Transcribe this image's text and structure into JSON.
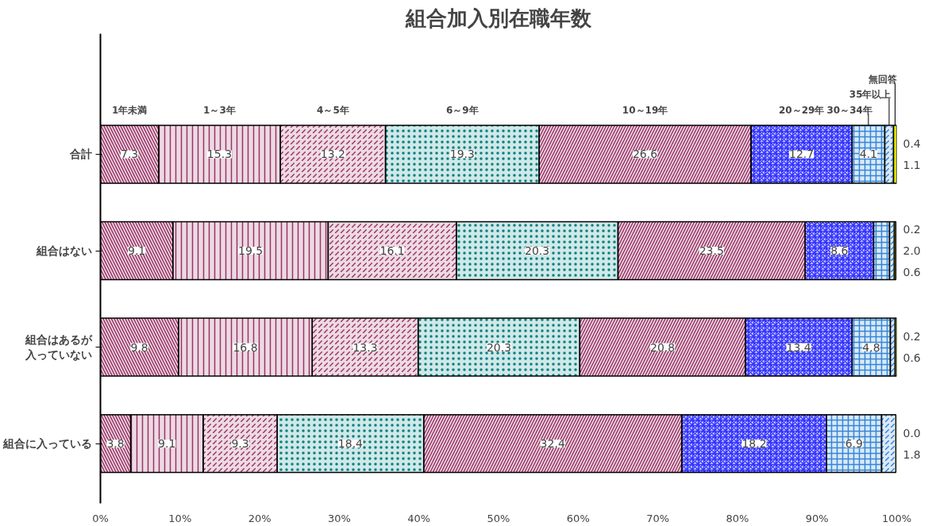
{
  "chart_data": {
    "type": "bar",
    "orientation": "horizontal",
    "stacked": true,
    "title": "組合加入別在職年数",
    "categories": [
      "合計",
      "組合はない",
      "組合はあるが入っていない",
      "組合に入っている"
    ],
    "series": [
      {
        "name": "1年未満",
        "color": "#993366",
        "values": [
          7.3,
          9.1,
          9.8,
          3.8
        ],
        "value_labels": [
          "7.3",
          "9.1",
          "9.8",
          "3.8"
        ]
      },
      {
        "name": "1～3年",
        "color": "#993366",
        "values": [
          15.3,
          19.5,
          16.8,
          9.1
        ],
        "value_labels": [
          "15.3",
          "19.5",
          "16.8",
          "9.1"
        ]
      },
      {
        "name": "4～5年",
        "color": "#993366",
        "values": [
          13.2,
          16.1,
          13.3,
          9.3
        ],
        "value_labels": [
          "13.2",
          "16.1",
          "13.3",
          "9.3"
        ]
      },
      {
        "name": "6～9年",
        "color": "#008080",
        "values": [
          19.3,
          20.3,
          20.3,
          18.4
        ],
        "value_labels": [
          "19.3",
          "20.3",
          "20.3",
          "18.4"
        ]
      },
      {
        "name": "10～19年",
        "color": "#993366",
        "values": [
          26.6,
          23.5,
          20.8,
          32.4
        ],
        "value_labels": [
          "26.6",
          "23.5",
          "20.8",
          "32.4"
        ]
      },
      {
        "name": "20～29年",
        "color": "#3333ff",
        "values": [
          12.7,
          8.6,
          13.4,
          18.2
        ],
        "value_labels": [
          "12.7",
          "8.6",
          "13.4",
          "18.2"
        ]
      },
      {
        "name": "30～34年",
        "color": "#3385d6",
        "values": [
          4.1,
          2.0,
          4.8,
          6.9
        ],
        "value_labels": [
          "4.1",
          "2.0",
          "4.8",
          "6.9"
        ]
      },
      {
        "name": "35年以上",
        "color": "#3385d6",
        "values": [
          1.1,
          0.6,
          0.6,
          1.8
        ],
        "value_labels": [
          "1.1",
          "0.6",
          "0.6",
          "1.8"
        ]
      },
      {
        "name": "無回答",
        "color": "#ffff00",
        "values": [
          0.4,
          0.2,
          0.2,
          0.0
        ],
        "value_labels": [
          "0.4",
          "0.2",
          "0.2",
          "0.0"
        ]
      }
    ],
    "xlim": [
      0,
      100
    ],
    "xticks": [
      {
        "value": 0,
        "label": "0%"
      },
      {
        "value": 10,
        "label": "10%"
      },
      {
        "value": 20,
        "label": "20%"
      },
      {
        "value": 30,
        "label": "30%"
      },
      {
        "value": 40,
        "label": "40%"
      },
      {
        "value": 50,
        "label": "50%"
      },
      {
        "value": 60,
        "label": "60%"
      },
      {
        "value": 70,
        "label": "70%"
      },
      {
        "value": 80,
        "label": "80%"
      },
      {
        "value": 90,
        "label": "90%"
      },
      {
        "value": 100,
        "label": "100%"
      }
    ],
    "grid": false
  }
}
